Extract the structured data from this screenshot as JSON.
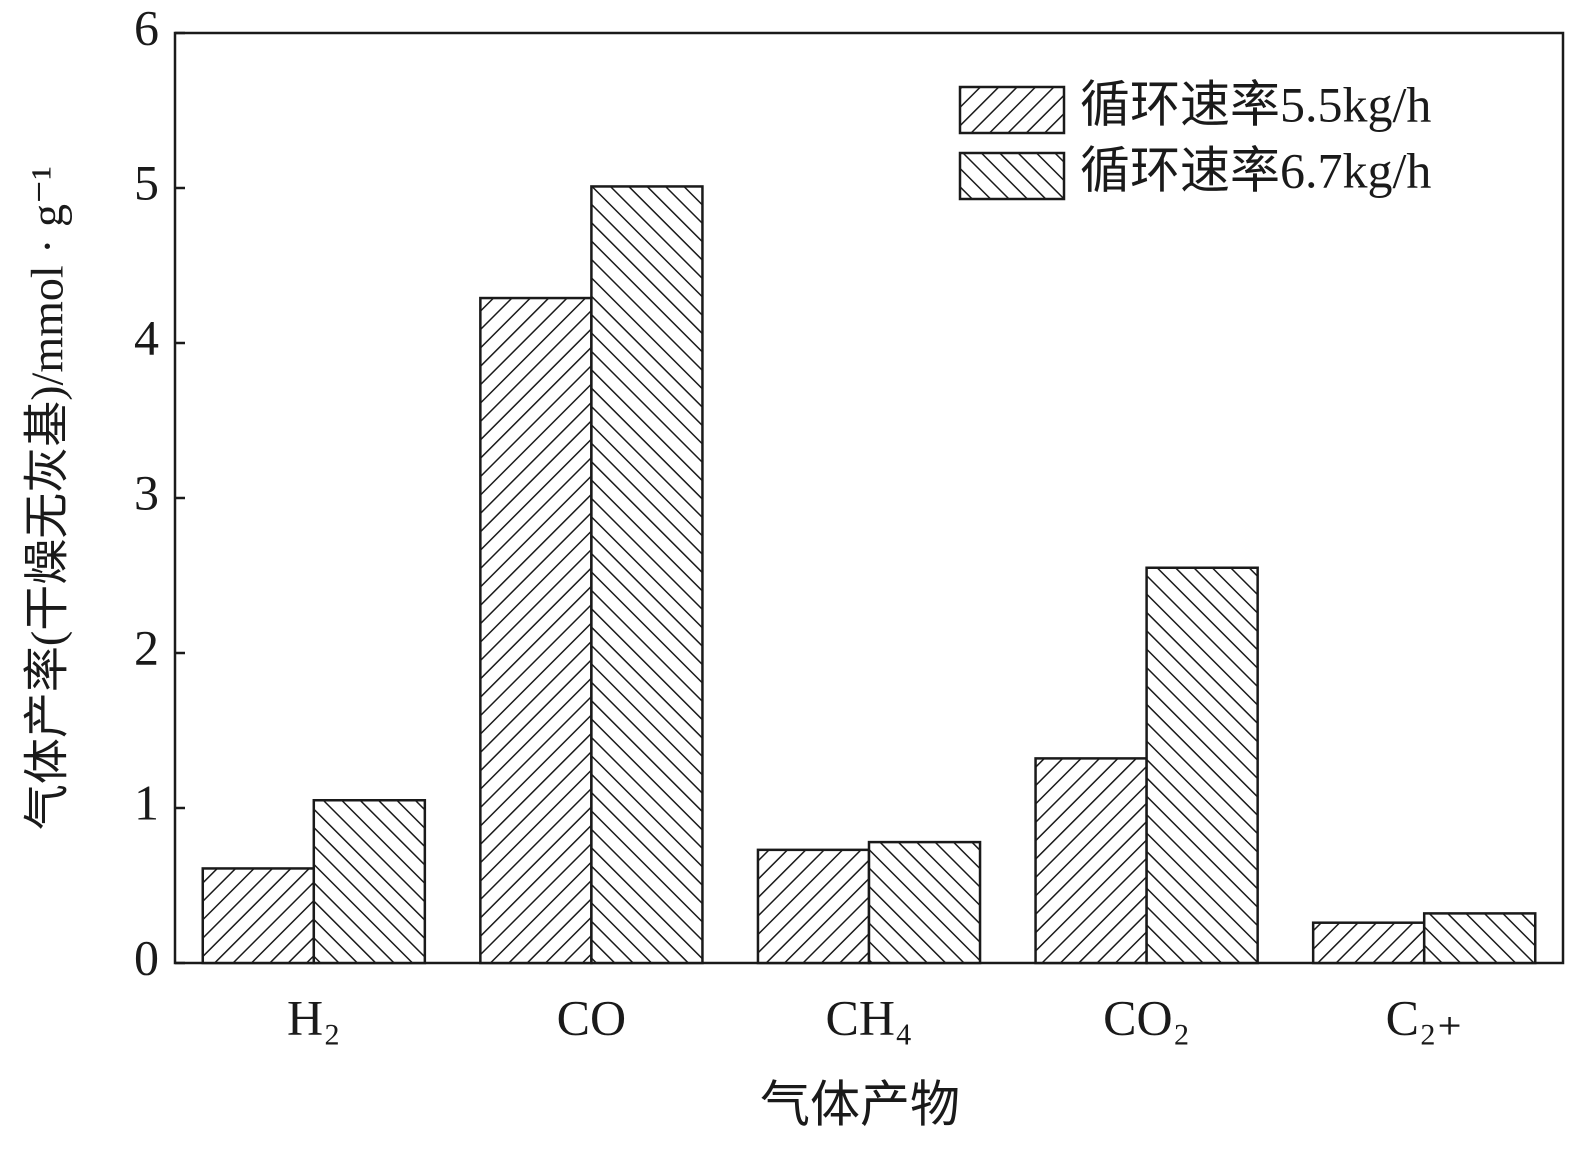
{
  "chart_data": {
    "type": "bar",
    "xlabel": "气体产物",
    "ylabel": "气体产率(干燥无灰基)/mmol · g⁻¹",
    "categories": [
      "H₂",
      "CO",
      "CH₄",
      "CO₂",
      "C₂₊"
    ],
    "series": [
      {
        "name": "循环速率5.5kg/h",
        "color": "#1a1a1a",
        "hatch": "/",
        "values": [
          0.61,
          4.29,
          0.73,
          1.32,
          0.26
        ]
      },
      {
        "name": "循环速率6.7kg/h",
        "color": "#1a1a1a",
        "hatch": "\\",
        "values": [
          1.05,
          5.01,
          0.78,
          2.55,
          0.32
        ]
      }
    ],
    "ylim": [
      0,
      6
    ],
    "yticks": [
      0,
      1,
      2,
      3,
      4,
      5,
      6
    ],
    "grid": false,
    "legend": "upper right"
  }
}
